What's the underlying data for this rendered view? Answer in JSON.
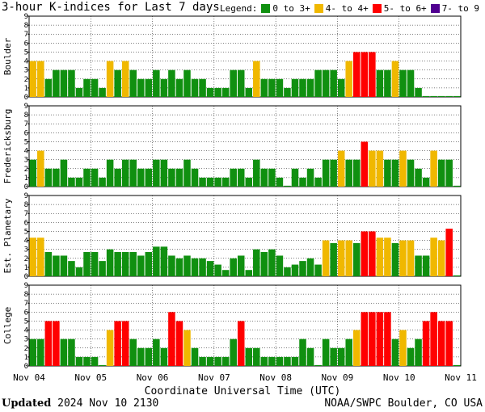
{
  "chart_data": {
    "type": "bar",
    "title": "3-hour K-indices for Last 7 days",
    "legend_label": "Legend:",
    "legend": [
      {
        "label": "0 to 3+",
        "color": "#109010",
        "min": 0,
        "max": 3.99
      },
      {
        "label": "4- to 4+",
        "color": "#f0b800",
        "min": 4,
        "max": 4.99
      },
      {
        "label": "5- to 6+",
        "color": "#ff0000",
        "min": 5,
        "max": 6.99
      },
      {
        "label": "7- to 9",
        "color": "#500090",
        "min": 7,
        "max": 9
      }
    ],
    "ylim": [
      0,
      9
    ],
    "yticks": [
      "0",
      "1",
      "2",
      "3",
      "4",
      "5",
      "6",
      "7",
      "8",
      "9"
    ],
    "xlabel": "Coordinate Universal Time (UTC)",
    "xticks": [
      "Nov 04",
      "Nov 05",
      "Nov 06",
      "Nov 07",
      "Nov 08",
      "Nov 09",
      "Nov 10",
      "Nov 11"
    ],
    "bars_per_day": 8,
    "panels": [
      {
        "name": "Boulder",
        "values": [
          4,
          4,
          2,
          3,
          3,
          3,
          1,
          2,
          2,
          1,
          4,
          3,
          4,
          3,
          2,
          2,
          3,
          2,
          3,
          2,
          3,
          2,
          2,
          1,
          1,
          1,
          3,
          3,
          1,
          4,
          2,
          2,
          2,
          1,
          2,
          2,
          2,
          3,
          3,
          3,
          2,
          4,
          5,
          5,
          5,
          3,
          3,
          4,
          3,
          3,
          1,
          0.1,
          0.1,
          0.1,
          0.1,
          0.1
        ]
      },
      {
        "name": "Fredericksburg",
        "values": [
          3,
          4,
          2,
          2,
          3,
          1,
          1,
          2,
          2,
          1,
          3,
          2,
          3,
          3,
          2,
          2,
          3,
          3,
          2,
          2,
          3,
          2,
          1,
          1,
          1,
          1,
          2,
          2,
          1,
          3,
          2,
          2,
          1,
          0.1,
          2,
          1,
          2,
          1,
          3,
          3,
          4,
          3,
          3,
          5,
          4,
          4,
          3,
          3,
          4,
          3,
          2,
          1,
          4,
          3,
          3,
          0.1
        ]
      },
      {
        "name": "Est. Planetary",
        "values": [
          4.3,
          4.3,
          2.7,
          2.3,
          2.3,
          1.7,
          1,
          2.7,
          2.7,
          1.7,
          3,
          2.7,
          2.7,
          2.7,
          2.3,
          2.7,
          3.3,
          3.3,
          2.3,
          2,
          2.3,
          2,
          2,
          1.7,
          1.3,
          0.7,
          2,
          2.3,
          0.7,
          3,
          2.7,
          3,
          2.3,
          1,
          1.3,
          1.7,
          2,
          1.3,
          4,
          3.7,
          4,
          4,
          3.7,
          5,
          5,
          4.3,
          4.3,
          3.7,
          4,
          4,
          2.3,
          2.3,
          4.3,
          4,
          5.3,
          0.1
        ]
      },
      {
        "name": "College",
        "values": [
          3,
          3,
          5,
          5,
          3,
          3,
          1,
          1,
          1,
          0.1,
          4,
          5,
          5,
          3,
          2,
          2,
          3,
          2,
          6,
          5,
          4,
          2,
          1,
          1,
          1,
          1,
          3,
          5,
          2,
          2,
          1,
          1,
          1,
          1,
          1,
          3,
          2,
          0.1,
          3,
          2,
          2,
          3,
          4,
          6,
          6,
          6,
          6,
          3,
          4,
          2,
          3,
          5,
          6,
          5,
          5,
          0.1
        ]
      }
    ]
  },
  "footer": {
    "updated_label": "Updated",
    "updated_time": "2024 Nov 10 2130",
    "source": "NOAA/SWPC Boulder, CO USA"
  }
}
